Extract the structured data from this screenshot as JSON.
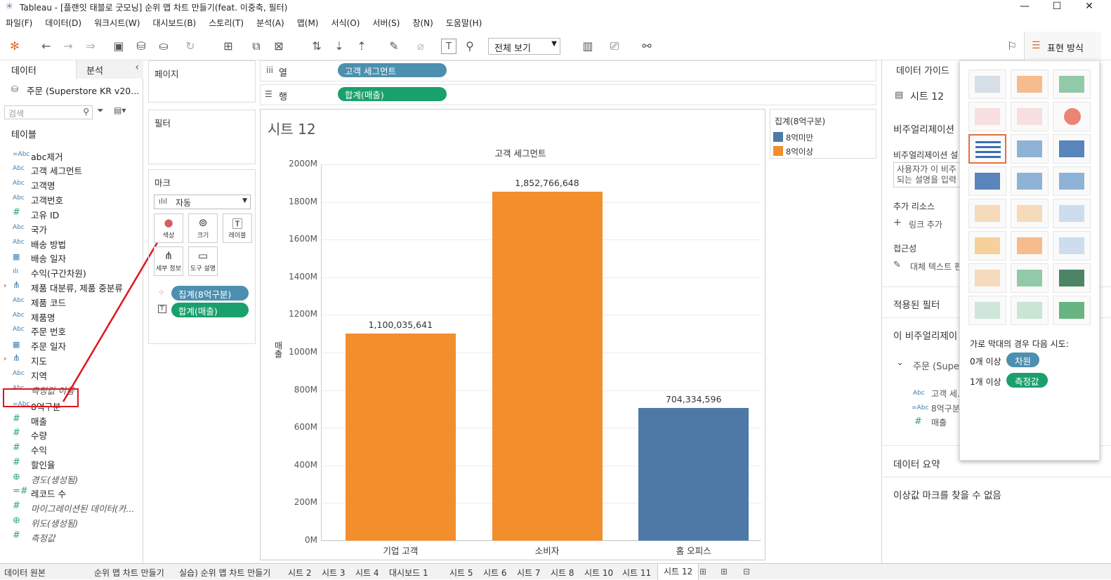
{
  "window": {
    "title": "Tableau - [플랜잇 태블로 굿모닝] 순위 맵 차트 만들기(feat. 이중축, 필터)"
  },
  "menu": [
    "파일(F)",
    "데이터(D)",
    "워크시트(W)",
    "대시보드(B)",
    "스토리(T)",
    "분석(A)",
    "맵(M)",
    "서식(O)",
    "서버(S)",
    "창(N)",
    "도움말(H)"
  ],
  "toolbar": {
    "view_select": "전체 보기",
    "show_me": "표현 방식"
  },
  "left": {
    "tab_data": "데이터",
    "tab_analysis": "분석",
    "datasource": "주문 (Superstore KR v20...",
    "search_placeholder": "검색",
    "tables_header": "테이블",
    "fields": [
      {
        "icon": "=Abc",
        "name": "abc제거"
      },
      {
        "icon": "Abc",
        "name": "고객 세그먼트"
      },
      {
        "icon": "Abc",
        "name": "고객명"
      },
      {
        "icon": "Abc",
        "name": "고객번호"
      },
      {
        "icon": "#",
        "name": "고유 ID"
      },
      {
        "icon": "Abc",
        "name": "국가"
      },
      {
        "icon": "Abc",
        "name": "배송 방법"
      },
      {
        "icon": "cal",
        "name": "배송 일자"
      },
      {
        "icon": "bin",
        "name": "수익(구간차원)"
      },
      {
        "icon": "hier",
        "name": "제품 대분류, 제품 중분류"
      },
      {
        "icon": "Abc",
        "name": "제품 코드"
      },
      {
        "icon": "Abc",
        "name": "제품명"
      },
      {
        "icon": "Abc",
        "name": "주문 번호"
      },
      {
        "icon": "cal",
        "name": "주문 일자"
      },
      {
        "icon": "hier",
        "name": "지도"
      },
      {
        "icon": "Abc",
        "name": "지역"
      },
      {
        "icon": "Abc",
        "name": "측정값 이름"
      },
      {
        "icon": "=Abc",
        "name": "8억구분"
      },
      {
        "icon": "#",
        "name": "매출"
      },
      {
        "icon": "#",
        "name": "수량"
      },
      {
        "icon": "#",
        "name": "수익"
      },
      {
        "icon": "#",
        "name": "할인율"
      },
      {
        "icon": "geo",
        "name": "경도(생성됨)"
      },
      {
        "icon": "=#",
        "name": "레코드 수"
      },
      {
        "icon": "#",
        "name": "마이그레이션된 데이터(카..."
      },
      {
        "icon": "geo",
        "name": "위도(생성됨)"
      },
      {
        "icon": "#",
        "name": "측정값"
      }
    ]
  },
  "cards": {
    "pages": "페이지",
    "filters": "필터",
    "marks": "마크",
    "mark_type": "자동",
    "mark_buttons": [
      "색상",
      "크기",
      "레이블",
      "세부 정보",
      "도구 설명"
    ],
    "color_pill": "집계(8억구분)",
    "label_pill": "합계(매출)"
  },
  "shelves": {
    "columns_label": "열",
    "rows_label": "행",
    "columns_pill": "고객 세그먼트",
    "rows_pill": "합계(매출)"
  },
  "sheet_title": "시트 12",
  "chart_data": {
    "type": "bar",
    "title": "고객 세그먼트",
    "ylabel": "매출",
    "categories": [
      "기업 고객",
      "소비자",
      "홈 오피스"
    ],
    "values": [
      1100035641,
      1852766648,
      704334596
    ],
    "labels": [
      "1,100,035,641",
      "1,852,766,648",
      "704,334,596"
    ],
    "groups": [
      "8억이상",
      "8억이상",
      "8억미만"
    ],
    "ylim": [
      0,
      2000000000
    ],
    "yticks": [
      "0M",
      "200M",
      "400M",
      "600M",
      "800M",
      "1000M",
      "1200M",
      "1400M",
      "1600M",
      "1800M",
      "2000M"
    ]
  },
  "legend": {
    "title": "집계(8억구분)",
    "items": [
      {
        "name": "8억미만",
        "color": "#4e79a7"
      },
      {
        "name": "8억이상",
        "color": "#f28e2b"
      }
    ]
  },
  "guide": {
    "title": "데이터 가이드",
    "sheet": "시트 12",
    "viz_header": "비주얼리제이션",
    "viz_desc_label": "비주얼리제이션 설",
    "viz_desc_text": "사용자가 이 비주 되는 설명을 입력",
    "resources": "추가 리소스",
    "link_add": "링크 추가",
    "accessibility": "접근성",
    "alt_text": "대체 텍스트 편",
    "applied_filters": "적용된 필터",
    "this_viz": "이 비주얼리제이",
    "ds": "주문 (Supe",
    "f1": "고객 세...",
    "f2": "8억구분",
    "f3": "매출",
    "summary": "데이터 요약",
    "outlier": "이상값 마크를 찾을 수 없음"
  },
  "showme": {
    "hint": "가로 막대의 경우 다음 시도:",
    "dim_req": "0개 이상",
    "dim_pill": "차원",
    "mea_req": "1개 이상",
    "mea_pill": "측정값"
  },
  "bottom_tabs": [
    "데이터 원본",
    "순위 맵 차트 만들기",
    "실습) 순위 맵 차트 만들기",
    "시트 2",
    "시트 3",
    "시트 4",
    "대시보드 1",
    "시트 5",
    "시트 6",
    "시트 7",
    "시트 8",
    "시트 10",
    "시트 11",
    "시트 12"
  ]
}
